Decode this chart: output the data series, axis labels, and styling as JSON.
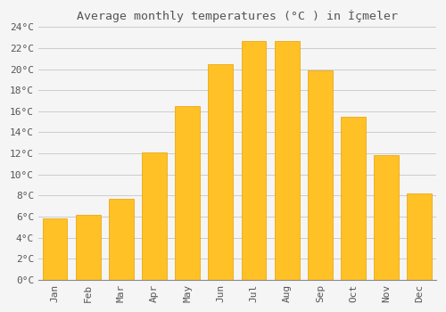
{
  "months": [
    "Jan",
    "Feb",
    "Mar",
    "Apr",
    "May",
    "Jun",
    "Jul",
    "Aug",
    "Sep",
    "Oct",
    "Nov",
    "Dec"
  ],
  "values": [
    5.8,
    6.2,
    7.7,
    12.1,
    16.5,
    20.5,
    22.7,
    22.7,
    19.9,
    15.5,
    11.8,
    8.2
  ],
  "bar_color": "#FFC125",
  "bar_edge_color": "#E8A000",
  "title": "Average monthly temperatures (°C ) in İçmeler",
  "ylim": [
    0,
    24
  ],
  "ytick_step": 2,
  "background_color": "#f5f5f5",
  "plot_bg_color": "#f5f5f5",
  "grid_color": "#cccccc",
  "title_fontsize": 9.5,
  "tick_fontsize": 8,
  "font_family": "monospace",
  "bar_width": 0.75
}
